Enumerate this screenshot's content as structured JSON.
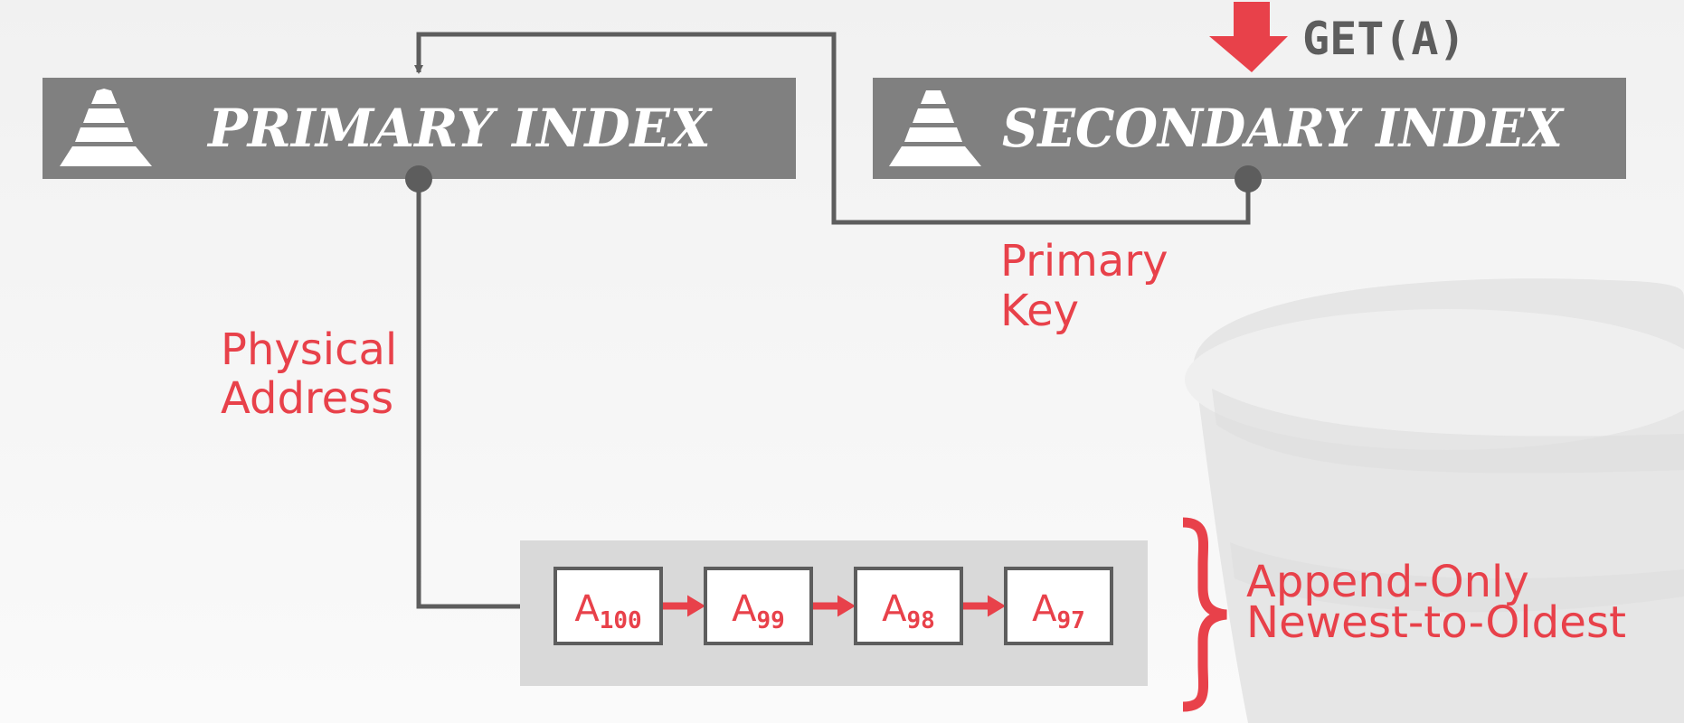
{
  "query": {
    "label": "GET(A)"
  },
  "primary_index": {
    "title": "PRIMARY INDEX"
  },
  "secondary_index": {
    "title": "SECONDARY INDEX"
  },
  "labels": {
    "primary_key": [
      "Primary",
      "Key"
    ],
    "physical_address": [
      "Physical",
      "Address"
    ],
    "chain_note": [
      "Append-Only",
      "Newest-to-Oldest"
    ]
  },
  "version_chain": [
    {
      "base": "A",
      "sub": "100"
    },
    {
      "base": "A",
      "sub": "99"
    },
    {
      "base": "A",
      "sub": "98"
    },
    {
      "base": "A",
      "sub": "97"
    }
  ],
  "colors": {
    "accent_red": "#e8414a",
    "index_bar": "#808080",
    "line_gray": "#5d5d5d",
    "chain_bg": "#d9d9d9"
  }
}
